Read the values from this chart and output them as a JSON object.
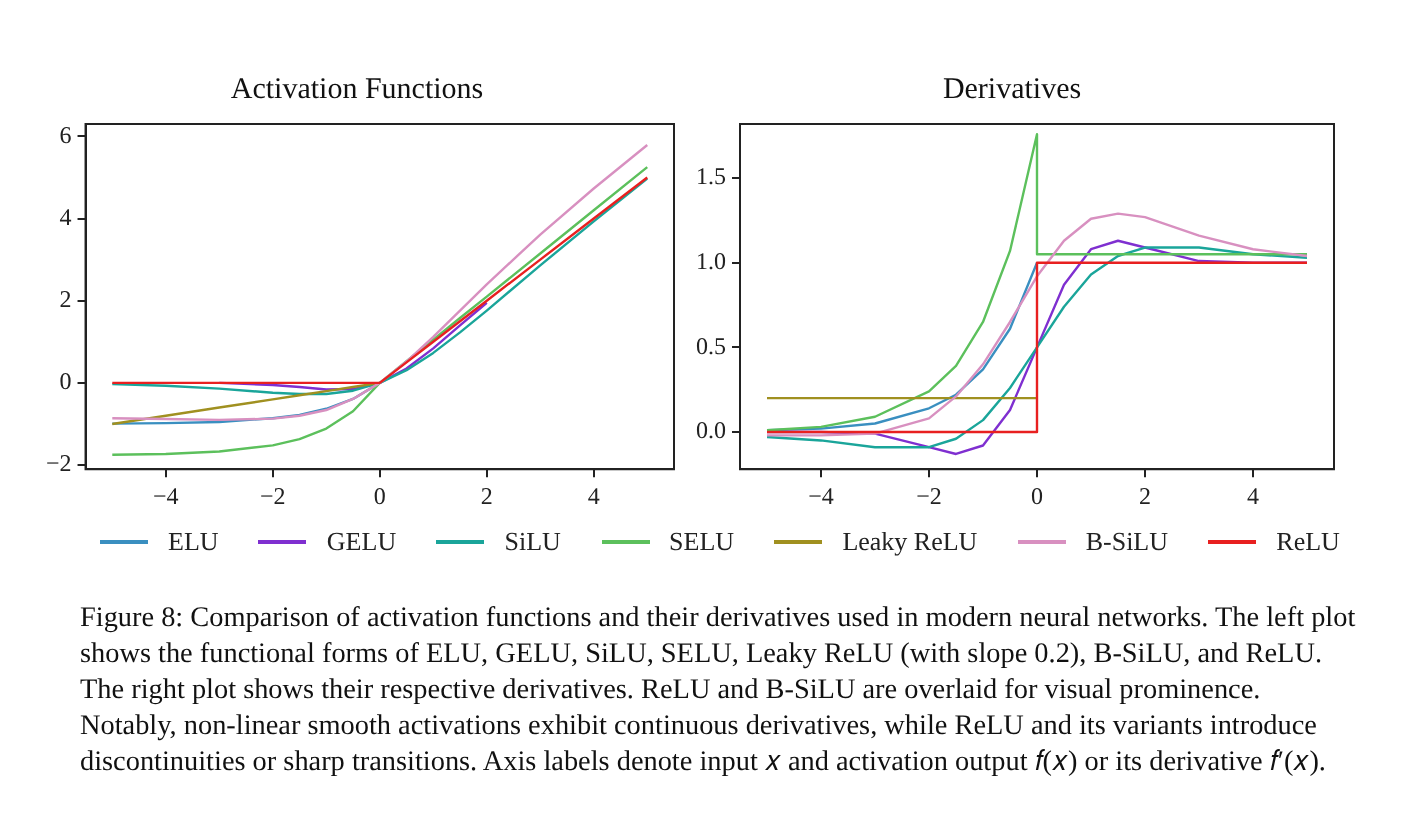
{
  "chart_data": [
    {
      "type": "line",
      "title": "Activation Functions",
      "legend": "bottom",
      "grid": false,
      "marker": "none",
      "line_style": "solid",
      "x": [
        -5,
        -4,
        -3,
        -2,
        -1.5,
        -1,
        -0.5,
        0,
        0.5,
        1,
        1.5,
        2,
        3,
        4,
        5
      ],
      "xlim": [
        -5.5,
        5.5
      ],
      "xticks": [
        -4,
        -2,
        0,
        2,
        4
      ],
      "ylim": [
        -2.1,
        6.3
      ],
      "yticks": [
        -2,
        0,
        2,
        4,
        6
      ],
      "series": [
        {
          "name": "ELU",
          "color": "#3a8fc0",
          "values": [
            -0.99,
            -0.98,
            -0.95,
            -0.86,
            -0.78,
            -0.63,
            -0.39,
            0,
            null,
            null,
            null,
            null,
            null,
            null,
            null
          ]
        },
        {
          "name": "GELU",
          "color": "#7f2fd0",
          "values": [
            null,
            null,
            0,
            -0.05,
            -0.1,
            -0.16,
            -0.15,
            0,
            0.35,
            0.84,
            1.4,
            1.95,
            null,
            null,
            null
          ]
        },
        {
          "name": "SiLU",
          "color": "#1aa59a",
          "values": [
            -0.03,
            -0.07,
            -0.14,
            -0.24,
            -0.27,
            -0.27,
            -0.19,
            0,
            0.31,
            0.73,
            1.23,
            1.76,
            2.86,
            3.93,
            4.97
          ]
        },
        {
          "name": "SELU",
          "color": "#5cc05c",
          "values": [
            -1.75,
            -1.73,
            -1.67,
            -1.52,
            -1.37,
            -1.11,
            -0.69,
            0,
            0.53,
            1.05,
            1.58,
            2.1,
            3.15,
            4.2,
            5.25
          ]
        },
        {
          "name": "Leaky ReLU",
          "color": "#a09020",
          "values": [
            -1,
            -0.8,
            -0.6,
            -0.4,
            -0.3,
            -0.2,
            -0.1,
            0,
            null,
            null,
            null,
            null,
            null,
            null,
            null
          ]
        },
        {
          "name": "B-SiLU",
          "color": "#d890c0",
          "values": [
            -0.86,
            -0.88,
            -0.9,
            -0.87,
            -0.8,
            -0.66,
            -0.39,
            0,
            0.52,
            1.12,
            1.76,
            2.4,
            3.61,
            4.73,
            5.79
          ]
        },
        {
          "name": "ReLU",
          "color": "#e82020",
          "values": [
            0,
            0,
            0,
            0,
            0,
            0,
            0,
            0,
            0.5,
            1,
            1.5,
            2,
            3,
            4,
            5
          ]
        }
      ],
      "annotations": [
        "Figure 8: Comparison of activation functions and their derivatives used in modern neural networks. The left plot shows the functional forms of ELU, GELU, SiLU, SELU, Leaky ReLU (with slope 0.2), B-SiLU, and ReLU. The right plot shows their respective derivatives. ReLU and B-SiLU are overlaid for visual prominence. Notably, non-linear smooth activations exhibit continuous derivatives, while ReLU and its variants introduce discontinuities or sharp transitions. Axis labels denote input 𝑥 and activation output 𝑓(𝑥) or its derivative 𝑓′(𝑥)."
      ]
    },
    {
      "type": "line",
      "title": "Derivatives",
      "grid": false,
      "marker": "none",
      "line_style": "solid",
      "x": [
        -5,
        -4,
        -3,
        -2,
        -1.5,
        -1,
        -0.5,
        0,
        0.5,
        1,
        1.5,
        2,
        3,
        4,
        5
      ],
      "xlim": [
        -5.5,
        5.5
      ],
      "xticks": [
        -4,
        -2,
        0,
        2,
        4
      ],
      "ylim": [
        -0.22,
        1.82
      ],
      "yticks": [
        {
          "value": 0,
          "label": "0.0"
        },
        0.5,
        {
          "value": 1,
          "label": "1.0"
        },
        1.5
      ],
      "series": [
        {
          "color": "#3a8fc0",
          "values": [
            0.01,
            0.02,
            0.05,
            0.14,
            0.22,
            0.37,
            0.61,
            1,
            null,
            null,
            null,
            null,
            null,
            null,
            null
          ]
        },
        {
          "color": "#7f2fd0",
          "values": [
            0,
            0,
            -0.01,
            -0.09,
            -0.13,
            -0.08,
            0.13,
            0.5,
            0.87,
            1.08,
            1.13,
            1.09,
            1.01,
            1,
            1
          ]
        },
        {
          "color": "#1aa59a",
          "values": [
            -0.03,
            -0.05,
            -0.09,
            -0.09,
            -0.04,
            0.07,
            0.26,
            0.5,
            0.74,
            0.93,
            1.04,
            1.09,
            1.09,
            1.05,
            1.03
          ]
        },
        {
          "color": "#5cc05c",
          "x": [
            -5,
            -4,
            -3,
            -2,
            -1.5,
            -1,
            -0.5,
            0,
            0,
            0.5,
            1,
            2,
            3,
            4,
            5
          ],
          "values": [
            0.01,
            0.03,
            0.09,
            0.24,
            0.39,
            0.65,
            1.07,
            1.76,
            1.05,
            1.05,
            1.05,
            1.05,
            1.05,
            1.05,
            1.05
          ]
        },
        {
          "color": "#a09020",
          "x": [
            -5,
            0
          ],
          "values": [
            0.2,
            0.2
          ]
        },
        {
          "color": "#d890c0",
          "values": [
            -0.02,
            -0.02,
            -0.01,
            0.08,
            0.21,
            0.4,
            0.65,
            0.92,
            1.13,
            1.26,
            1.29,
            1.27,
            1.16,
            1.08,
            1.04
          ]
        },
        {
          "color": "#e82020",
          "x": [
            -5,
            0,
            0,
            5
          ],
          "values": [
            0,
            0,
            1,
            1
          ]
        }
      ]
    }
  ]
}
